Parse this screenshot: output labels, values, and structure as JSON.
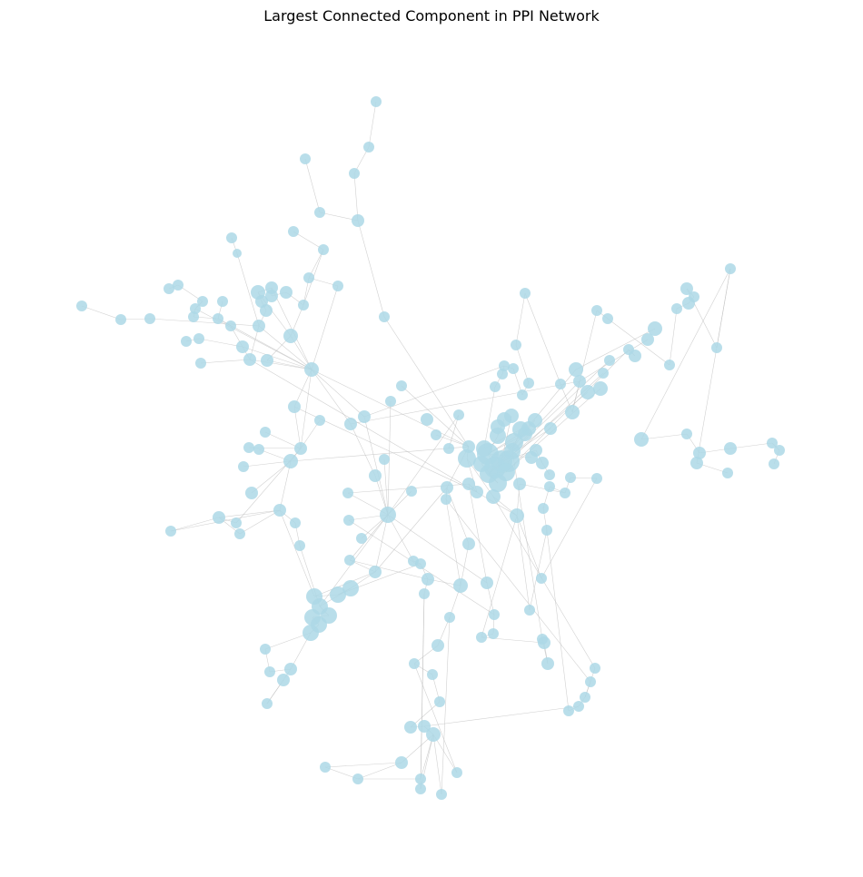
{
  "title": "Largest Connected Component in PPI Network",
  "colors": {
    "node": "#add8e6",
    "edge": "#bdbdbd",
    "background": "#ffffff"
  },
  "graph": {
    "type": "network",
    "nodes_shown": 175
  }
}
